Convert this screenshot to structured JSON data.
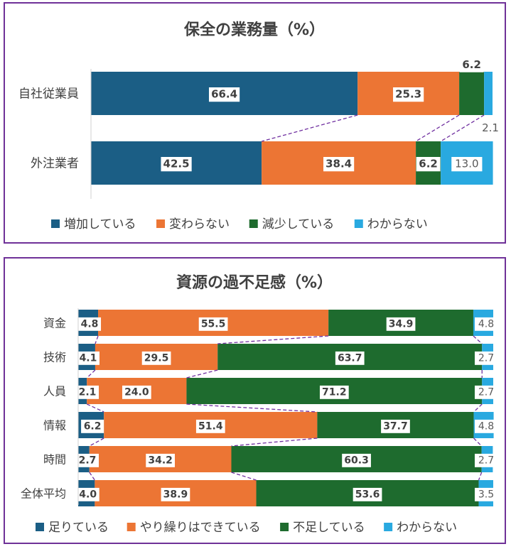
{
  "chart_data": [
    {
      "type": "bar",
      "stacked": true,
      "orientation": "horizontal",
      "percent": true,
      "title": "保全の業務量（%）",
      "categories": [
        "自社従業員",
        "外注業者"
      ],
      "series": [
        {
          "name": "増加している",
          "color": "#1b5e85",
          "values": [
            66.4,
            42.5
          ]
        },
        {
          "name": "変わらない",
          "color": "#ec7534",
          "values": [
            25.3,
            38.4
          ]
        },
        {
          "name": "減少している",
          "color": "#1e6b2e",
          "values": [
            6.2,
            6.2
          ]
        },
        {
          "name": "わからない",
          "color": "#29a9e0",
          "values": [
            2.1,
            13.0
          ]
        }
      ],
      "legend_position": "bottom",
      "connector_lines": true
    },
    {
      "type": "bar",
      "stacked": true,
      "orientation": "horizontal",
      "percent": true,
      "title": "資源の過不足感（%）",
      "categories": [
        "資金",
        "技術",
        "人員",
        "情報",
        "時間",
        "全体平均"
      ],
      "series": [
        {
          "name": "足りている",
          "color": "#1b5e85",
          "values": [
            4.8,
            4.1,
            2.1,
            6.2,
            2.7,
            4.0
          ]
        },
        {
          "name": "やり繰りはできている",
          "color": "#ec7534",
          "values": [
            55.5,
            29.5,
            24.0,
            51.4,
            34.2,
            38.9
          ]
        },
        {
          "name": "不足している",
          "color": "#1e6b2e",
          "values": [
            34.9,
            63.7,
            71.2,
            37.7,
            60.3,
            53.6
          ]
        },
        {
          "name": "わからない",
          "color": "#29a9e0",
          "values": [
            4.8,
            2.7,
            2.7,
            4.8,
            2.7,
            3.5
          ]
        }
      ],
      "legend_position": "bottom",
      "connector_lines": true
    }
  ]
}
